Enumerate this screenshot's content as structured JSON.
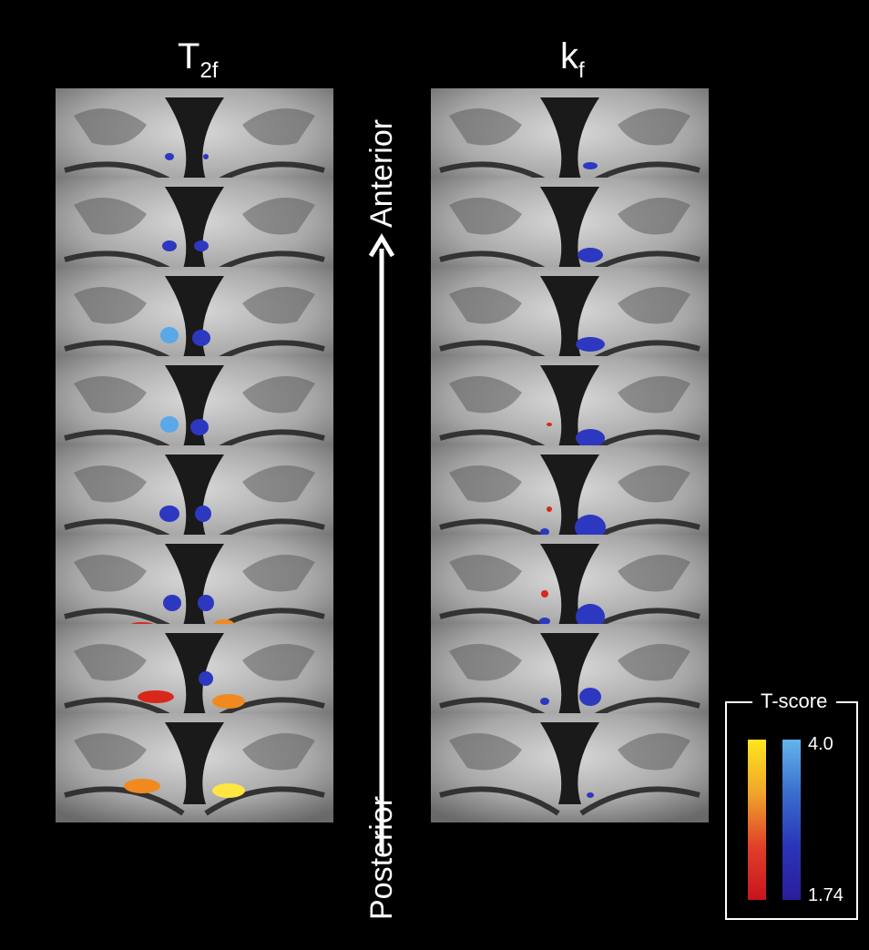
{
  "column_titles": {
    "left_main": "T",
    "left_sub": "2f",
    "right_main": "k",
    "right_sub": "f"
  },
  "axis": {
    "anterior_label": "Anterior",
    "posterior_label": "Posterior"
  },
  "legend": {
    "title": "T-score",
    "max_label": "4.0",
    "min_label": "1.74",
    "warm_colors": [
      "#ffe61e",
      "#c8141e"
    ],
    "cool_colors": [
      "#64b4ec",
      "#2a1e9a"
    ]
  }
}
